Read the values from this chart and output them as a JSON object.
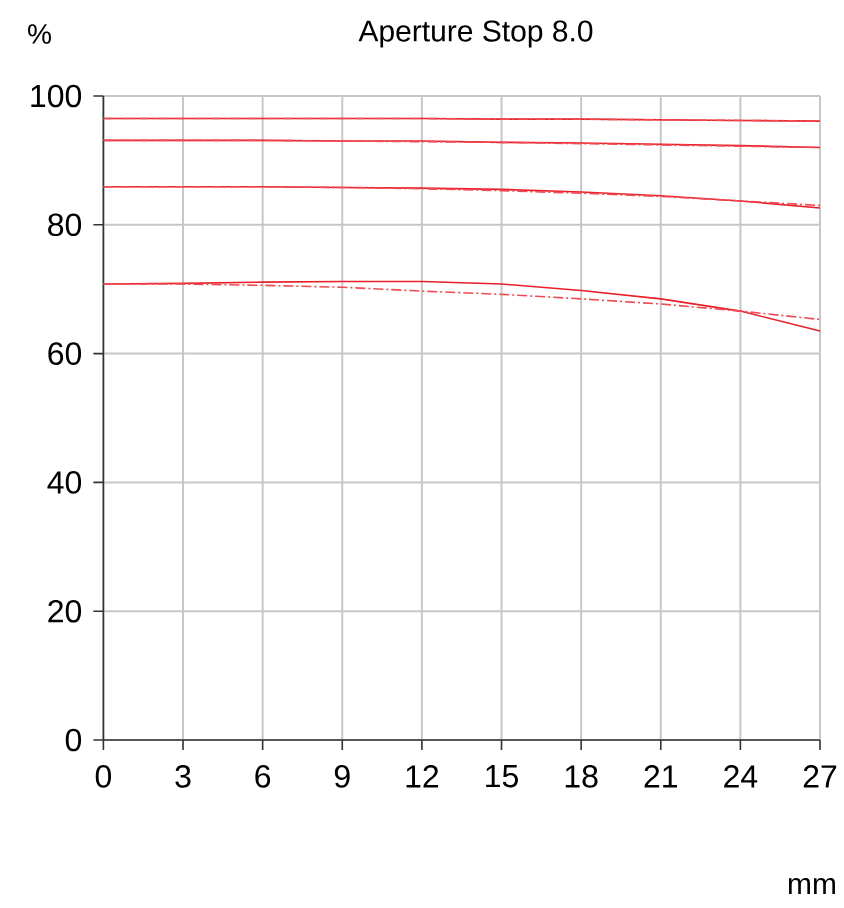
{
  "chart_data": {
    "type": "line",
    "title": "Aperture Stop 8.0",
    "xlabel": "mm",
    "ylabel": "%",
    "xlim": [
      0,
      27
    ],
    "ylim": [
      0,
      100
    ],
    "xticks": [
      0,
      3,
      6,
      9,
      12,
      15,
      18,
      21,
      24,
      27
    ],
    "yticks": [
      0,
      20,
      40,
      60,
      80,
      100
    ],
    "grid": true,
    "marker": "none",
    "x": [
      0,
      3,
      6,
      9,
      12,
      15,
      18,
      21,
      24,
      27
    ],
    "series": [
      {
        "color": "#e8202a",
        "line_style": "solid",
        "values": [
          96.5,
          96.5,
          96.5,
          96.5,
          96.5,
          96.4,
          96.4,
          96.3,
          96.2,
          96.1
        ]
      },
      {
        "color": "#f04a54",
        "line_style": "dashed",
        "values": [
          96.5,
          96.5,
          96.5,
          96.5,
          96.5,
          96.4,
          96.4,
          96.3,
          96.2,
          96.1
        ]
      },
      {
        "color": "#e8202a",
        "line_style": "solid",
        "values": [
          93.1,
          93.1,
          93.1,
          93.0,
          93.0,
          92.8,
          92.7,
          92.5,
          92.3,
          92.0
        ]
      },
      {
        "color": "#f04a54",
        "line_style": "dashed",
        "values": [
          93.1,
          93.1,
          93.1,
          93.0,
          92.9,
          92.8,
          92.6,
          92.4,
          92.2,
          92.0
        ]
      },
      {
        "color": "#e8202a",
        "line_style": "solid",
        "values": [
          85.9,
          85.9,
          85.9,
          85.8,
          85.7,
          85.5,
          85.1,
          84.5,
          83.7,
          82.6
        ]
      },
      {
        "color": "#f04a54",
        "line_style": "dashed",
        "values": [
          85.9,
          85.9,
          85.9,
          85.8,
          85.6,
          85.3,
          84.9,
          84.4,
          83.7,
          83.0
        ]
      },
      {
        "color": "#e8202a",
        "line_style": "solid",
        "values": [
          70.8,
          70.9,
          71.1,
          71.2,
          71.2,
          70.8,
          69.8,
          68.5,
          66.6,
          63.5
        ]
      },
      {
        "color": "#f04a54",
        "line_style": "dashed",
        "values": [
          70.8,
          70.8,
          70.6,
          70.3,
          69.7,
          69.2,
          68.5,
          67.7,
          66.6,
          65.3
        ]
      }
    ]
  }
}
